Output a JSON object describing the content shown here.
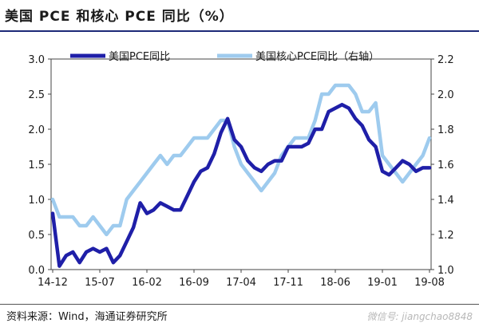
{
  "title": "美国 PCE 和核心 PCE 同比（%）",
  "source": "资料来源：Wind，海通证券研究所",
  "watermark": "微信号: jiangchao8848",
  "colors": {
    "headline_pce": "#1f1fa8",
    "core_pce": "#9ecbee",
    "title_rule": "#1e2a78"
  },
  "chart_data": {
    "type": "line",
    "title": "美国 PCE 和核心 PCE 同比（%）",
    "xlabel": "",
    "x_tick_labels": [
      "14-12",
      "15-07",
      "16-02",
      "16-09",
      "17-04",
      "17-11",
      "18-06",
      "19-01",
      "19-08"
    ],
    "y_left": {
      "lim": [
        0.0,
        3.0
      ],
      "ticks": [
        "0.0",
        "0.5",
        "1.0",
        "1.5",
        "2.0",
        "2.5",
        "3.0"
      ]
    },
    "y_right": {
      "lim": [
        1.0,
        2.2
      ],
      "ticks": [
        "1.0",
        "1.2",
        "1.4",
        "1.6",
        "1.8",
        "2.0",
        "2.2"
      ]
    },
    "legend_position": "top",
    "series": [
      {
        "name": "美国PCE同比",
        "axis": "left",
        "x": [
          "2014-12",
          "2015-01",
          "2015-02",
          "2015-03",
          "2015-04",
          "2015-05",
          "2015-06",
          "2015-07",
          "2015-08",
          "2015-09",
          "2015-10",
          "2015-11",
          "2015-12",
          "2016-01",
          "2016-02",
          "2016-03",
          "2016-04",
          "2016-05",
          "2016-06",
          "2016-07",
          "2016-08",
          "2016-09",
          "2016-10",
          "2016-11",
          "2016-12",
          "2017-01",
          "2017-02",
          "2017-03",
          "2017-04",
          "2017-05",
          "2017-06",
          "2017-07",
          "2017-08",
          "2017-09",
          "2017-10",
          "2017-11",
          "2017-12",
          "2018-01",
          "2018-02",
          "2018-03",
          "2018-04",
          "2018-05",
          "2018-06",
          "2018-07",
          "2018-08",
          "2018-09",
          "2018-10",
          "2018-11",
          "2018-12",
          "2019-01",
          "2019-02",
          "2019-03",
          "2019-04",
          "2019-05",
          "2019-06",
          "2019-07",
          "2019-08"
        ],
        "values": [
          0.8,
          0.05,
          0.2,
          0.25,
          0.1,
          0.25,
          0.3,
          0.25,
          0.3,
          0.1,
          0.2,
          0.4,
          0.6,
          0.95,
          0.8,
          0.85,
          0.95,
          0.9,
          0.85,
          0.85,
          1.05,
          1.25,
          1.4,
          1.45,
          1.65,
          1.95,
          2.15,
          1.85,
          1.75,
          1.55,
          1.45,
          1.4,
          1.5,
          1.55,
          1.55,
          1.75,
          1.75,
          1.75,
          1.8,
          2.0,
          2.0,
          2.25,
          2.3,
          2.35,
          2.3,
          2.15,
          2.05,
          1.85,
          1.75,
          1.4,
          1.35,
          1.45,
          1.55,
          1.5,
          1.4,
          1.45,
          1.45
        ]
      },
      {
        "name": "美国核心PCE同比（右轴）",
        "axis": "right",
        "x": [
          "2014-12",
          "2015-01",
          "2015-02",
          "2015-03",
          "2015-04",
          "2015-05",
          "2015-06",
          "2015-07",
          "2015-08",
          "2015-09",
          "2015-10",
          "2015-11",
          "2015-12",
          "2016-01",
          "2016-02",
          "2016-03",
          "2016-04",
          "2016-05",
          "2016-06",
          "2016-07",
          "2016-08",
          "2016-09",
          "2016-10",
          "2016-11",
          "2016-12",
          "2017-01",
          "2017-02",
          "2017-03",
          "2017-04",
          "2017-05",
          "2017-06",
          "2017-07",
          "2017-08",
          "2017-09",
          "2017-10",
          "2017-11",
          "2017-12",
          "2018-01",
          "2018-02",
          "2018-03",
          "2018-04",
          "2018-05",
          "2018-06",
          "2018-07",
          "2018-08",
          "2018-09",
          "2018-10",
          "2018-11",
          "2018-12",
          "2019-01",
          "2019-02",
          "2019-03",
          "2019-04",
          "2019-05",
          "2019-06",
          "2019-07",
          "2019-08"
        ],
        "values": [
          1.4,
          1.3,
          1.3,
          1.3,
          1.25,
          1.25,
          1.3,
          1.25,
          1.2,
          1.25,
          1.25,
          1.4,
          1.45,
          1.5,
          1.55,
          1.6,
          1.65,
          1.6,
          1.65,
          1.65,
          1.7,
          1.75,
          1.75,
          1.75,
          1.8,
          1.85,
          1.85,
          1.7,
          1.6,
          1.55,
          1.5,
          1.45,
          1.5,
          1.55,
          1.65,
          1.7,
          1.75,
          1.75,
          1.75,
          1.85,
          2.0,
          2.0,
          2.05,
          2.05,
          2.05,
          2.0,
          1.9,
          1.9,
          1.95,
          1.65,
          1.6,
          1.55,
          1.5,
          1.55,
          1.6,
          1.65,
          1.75
        ]
      }
    ]
  }
}
